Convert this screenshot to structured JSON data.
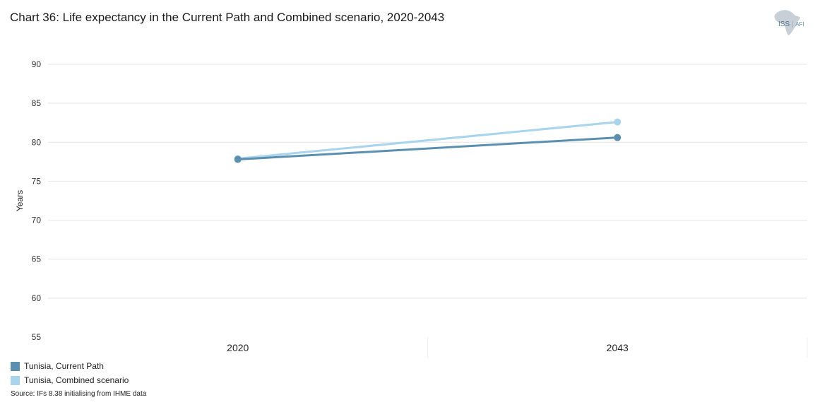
{
  "header": {
    "title": "Chart 36: Life expectancy in the Current Path and Combined scenario, 2020-2043",
    "logo_text": "ISS",
    "logo_subtext": "AFI"
  },
  "chart_data": {
    "type": "line",
    "title": "Chart 36: Life expectancy in the Current Path and Combined scenario, 2020-2043",
    "xlabel": "",
    "ylabel": "Years",
    "categories": [
      "2020",
      "2043"
    ],
    "ylim": [
      55,
      90
    ],
    "yticks": [
      55,
      60,
      65,
      70,
      75,
      80,
      85,
      90
    ],
    "grid": true,
    "legend_position": "bottom-left",
    "series": [
      {
        "name": "Tunisia, Current Path",
        "values": [
          77.8,
          80.6
        ],
        "color": "#5b8fb0"
      },
      {
        "name": "Tunisia, Combined scenario",
        "values": [
          77.9,
          82.6
        ],
        "color": "#a8d4ee"
      }
    ]
  },
  "legend": {
    "items": [
      {
        "label": "Tunisia, Current Path",
        "color": "#5b8fb0"
      },
      {
        "label": "Tunisia, Combined scenario",
        "color": "#a8d4ee"
      }
    ]
  },
  "footer": {
    "source": "Source: IFs 8.38 initialising from IHME data"
  }
}
